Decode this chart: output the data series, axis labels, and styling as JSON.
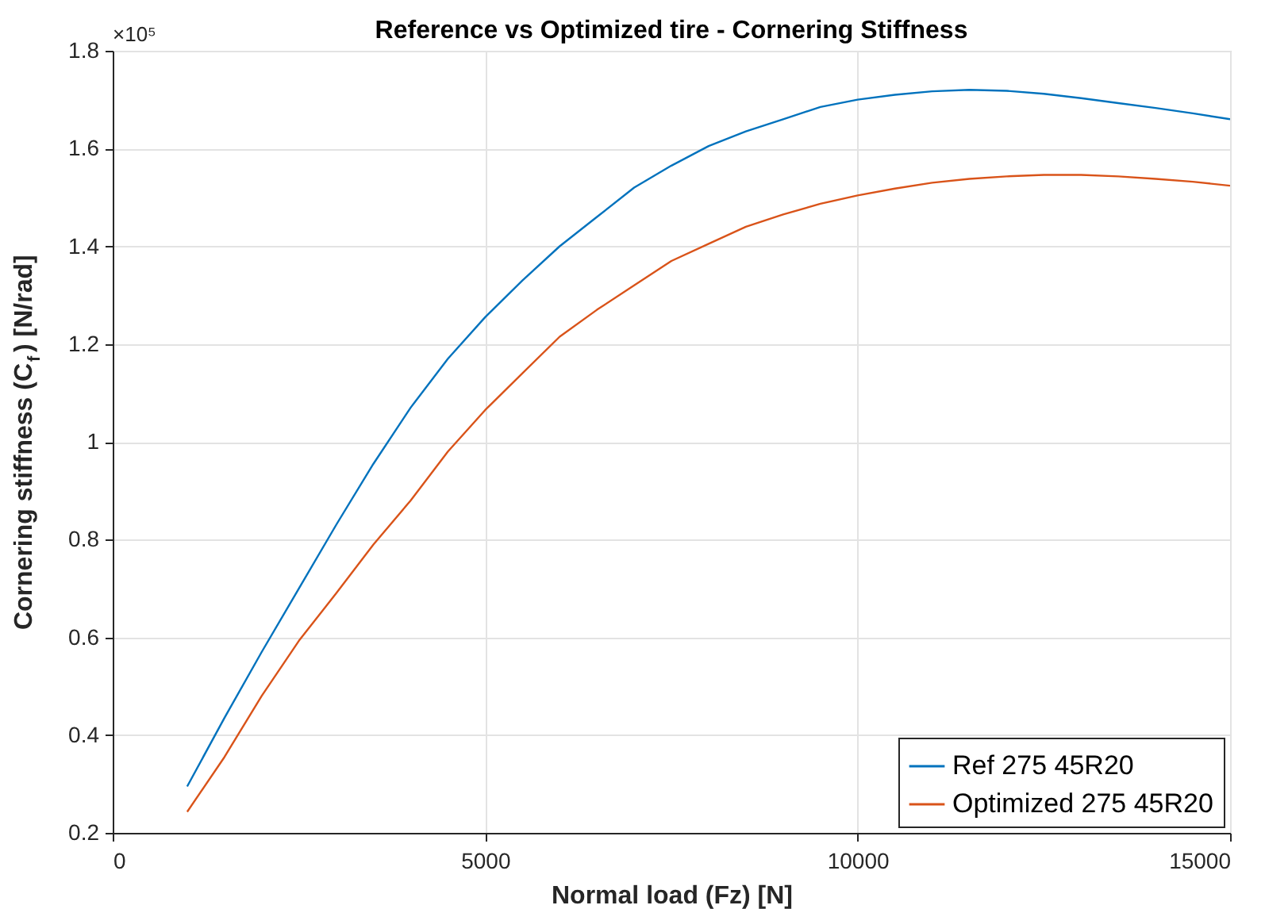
{
  "chart_data": {
    "type": "line",
    "title": "Reference vs Optimized tire - Cornering Stiffness",
    "xlabel": "Normal load (Fz) [N]",
    "ylabel": "Cornering stiffness (C$_{f}$) [N/rad]",
    "annotations": [
      "×10⁵"
    ],
    "x": [
      1000,
      1500,
      2000,
      2500,
      3000,
      3500,
      4000,
      4500,
      5000,
      5500,
      6000,
      6500,
      7000,
      7500,
      8000,
      8500,
      9000,
      9500,
      10000,
      10500,
      11000,
      11500,
      12000,
      12500,
      13000,
      13500,
      14000,
      14500,
      15000
    ],
    "series": [
      {
        "name": "Ref 275 45R20",
        "color": "#0072bd",
        "values": [
          0.295,
          0.435,
          0.57,
          0.7,
          0.83,
          0.955,
          1.07,
          1.17,
          1.255,
          1.33,
          1.4,
          1.46,
          1.52,
          1.565,
          1.605,
          1.635,
          1.66,
          1.685,
          1.7,
          1.71,
          1.717,
          1.72,
          1.718,
          1.712,
          1.703,
          1.693,
          1.683,
          1.672,
          1.66
        ]
      },
      {
        "name": "Optimized 275 45R20",
        "color": "#d95319",
        "values": [
          0.243,
          0.355,
          0.48,
          0.593,
          0.69,
          0.79,
          0.88,
          0.98,
          1.065,
          1.14,
          1.215,
          1.27,
          1.32,
          1.37,
          1.405,
          1.44,
          1.465,
          1.487,
          1.504,
          1.518,
          1.53,
          1.538,
          1.543,
          1.546,
          1.546,
          1.543,
          1.538,
          1.532,
          1.524
        ]
      }
    ],
    "xlim": [
      0,
      15000
    ],
    "xticks": [
      0,
      5000,
      10000,
      15000
    ],
    "ylim": [
      0.2,
      1.8
    ],
    "yticks": [
      0.2,
      0.4,
      0.6,
      0.8,
      1,
      1.2,
      1.4,
      1.6,
      1.8
    ],
    "grid": true,
    "legend": "bottom right",
    "marker": "none",
    "line_style": "solid"
  }
}
